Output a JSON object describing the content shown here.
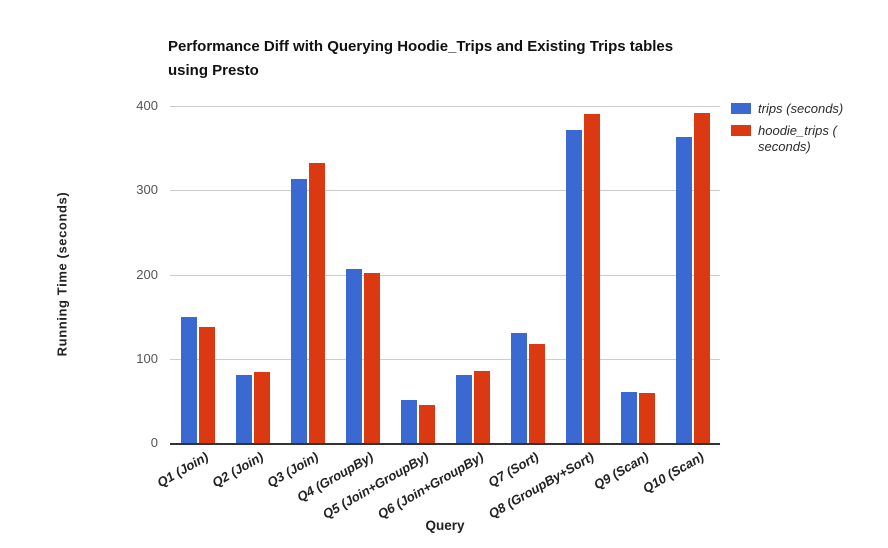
{
  "chart_data": {
    "type": "bar",
    "title": "Performance Diff with Querying Hoodie_Trips and Existing Trips tables using Presto",
    "title_lines": [
      "Performance Diff with Querying Hoodie_Trips and Existing Trips tables",
      "using Presto"
    ],
    "xlabel": "Query",
    "ylabel": "Running Time (seconds)",
    "categories": [
      "Q1 (Join)",
      "Q2 (Join)",
      "Q3 (Join)",
      "Q4 (GroupBy)",
      "Q5 (Join+GroupBy)",
      "Q6 (Join+GroupBy)",
      "Q7 (Sort)",
      "Q8 (GroupBy+Sort)",
      "Q9 (Scan)",
      "Q10 (Scan)"
    ],
    "series": [
      {
        "name": "trips (seconds)",
        "color": "#3A69D2",
        "values": [
          150,
          81,
          313,
          207,
          51,
          81,
          131,
          371,
          61,
          363
        ]
      },
      {
        "name": "hoodie_trips ( seconds)",
        "color": "#DB3912",
        "values": [
          138,
          84,
          332,
          202,
          45,
          85,
          117,
          390,
          59,
          392
        ]
      }
    ],
    "ylim": [
      0,
      400
    ],
    "yticks": [
      0,
      100,
      200,
      300,
      400
    ],
    "grid": true,
    "legend_position": "right",
    "axis_color": "#333333",
    "gridline_color": "#cccccc",
    "background_color": "#ffffff"
  }
}
